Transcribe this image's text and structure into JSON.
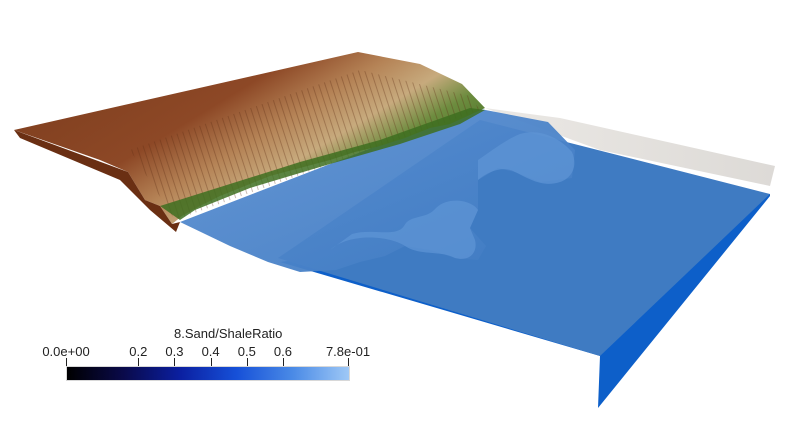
{
  "colorbar": {
    "title": "8.Sand/ShaleRatio",
    "labels": [
      "0.0e+00",
      "0.2",
      "0.3",
      "0.4",
      "0.5",
      "0.6",
      "7.8e-01"
    ],
    "tick_values": [
      0.0,
      0.2,
      0.3,
      0.4,
      0.5,
      0.6,
      0.78
    ],
    "range": [
      0.0,
      0.78
    ],
    "colors": [
      "#000000",
      "#0a0a4a",
      "#0b1fa0",
      "#1650d8",
      "#4a8ae6",
      "#9ec8f6"
    ]
  },
  "scene": {
    "terrain_colors": [
      "#7a3b1c",
      "#a5683a",
      "#c9a979",
      "#6c8a3e",
      "#3c6e1e"
    ],
    "water_color": "#4a84c6",
    "base_color": "#0d5fc9",
    "background": "#ffffff"
  }
}
